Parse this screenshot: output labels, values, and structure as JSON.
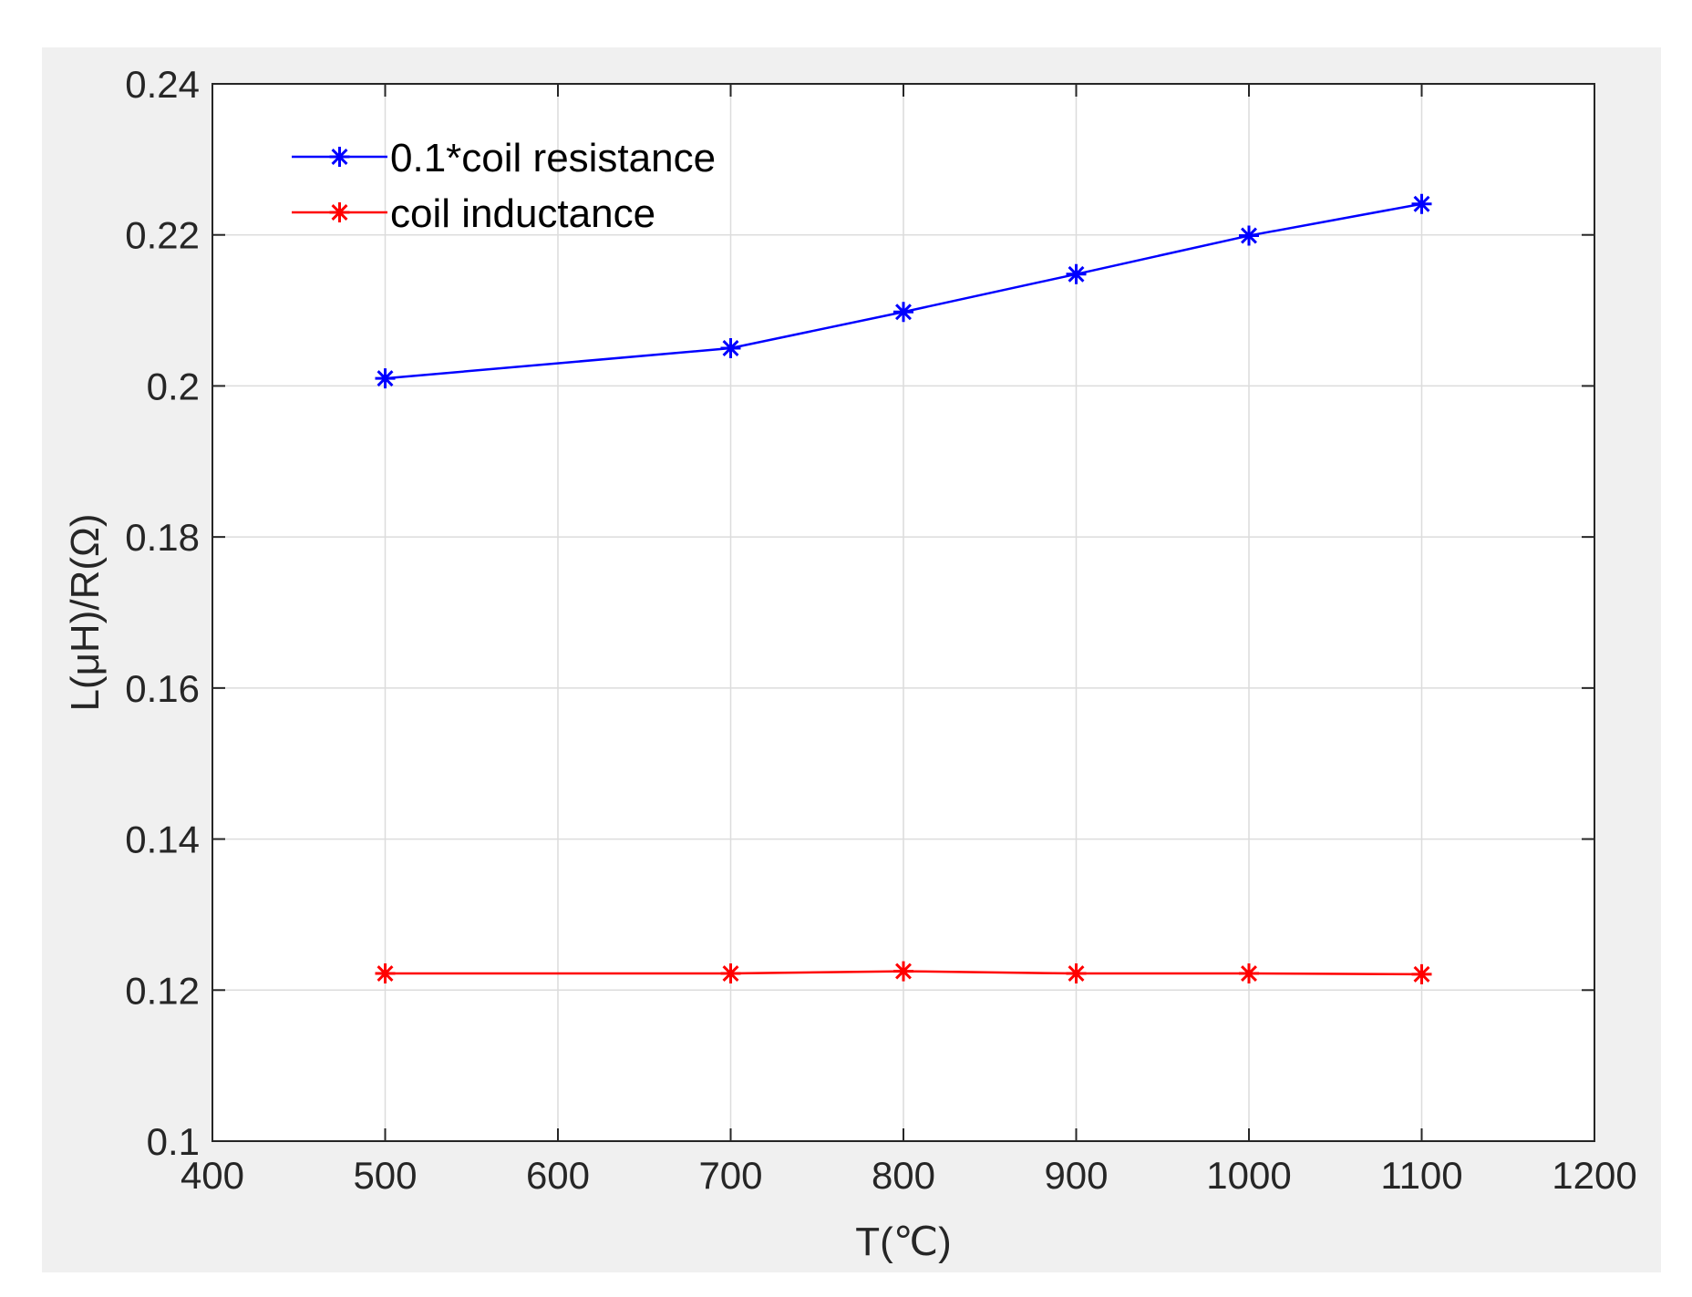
{
  "chart_data": {
    "type": "line",
    "title": "",
    "xlabel": "T(℃)",
    "ylabel": "L(μH)/R(Ω)",
    "xlim": [
      400,
      1200
    ],
    "ylim": [
      0.1,
      0.24
    ],
    "xticks": [
      400,
      500,
      600,
      700,
      800,
      900,
      1000,
      1100,
      1200
    ],
    "xtick_labels": [
      "400",
      "500",
      "600",
      "700",
      "800",
      "900",
      "1000",
      "1100",
      "1200"
    ],
    "yticks": [
      0.1,
      0.12,
      0.14,
      0.16,
      0.18,
      0.2,
      0.22,
      0.24
    ],
    "ytick_labels": [
      "0.1",
      "0.12",
      "0.14",
      "0.16",
      "0.18",
      "0.2",
      "0.22",
      "0.24"
    ],
    "grid": true,
    "legend_position": "top-left",
    "x": [
      500,
      700,
      800,
      900,
      1000,
      1100
    ],
    "series": [
      {
        "name": "0.1*coil resistance",
        "color": "#0000ff",
        "marker": "asterisk",
        "values": [
          0.201,
          0.205,
          0.2098,
          0.2148,
          0.2199,
          0.2241
        ]
      },
      {
        "name": "coil inductance",
        "color": "#ff0000",
        "marker": "asterisk",
        "values": [
          0.1222,
          0.1222,
          0.1225,
          0.1222,
          0.1222,
          0.1221
        ]
      }
    ]
  },
  "colors": {
    "figure_background": "#f0f0f0",
    "axes_background": "#ffffff",
    "axis": "#262626",
    "grid": "#dcdcdc"
  }
}
